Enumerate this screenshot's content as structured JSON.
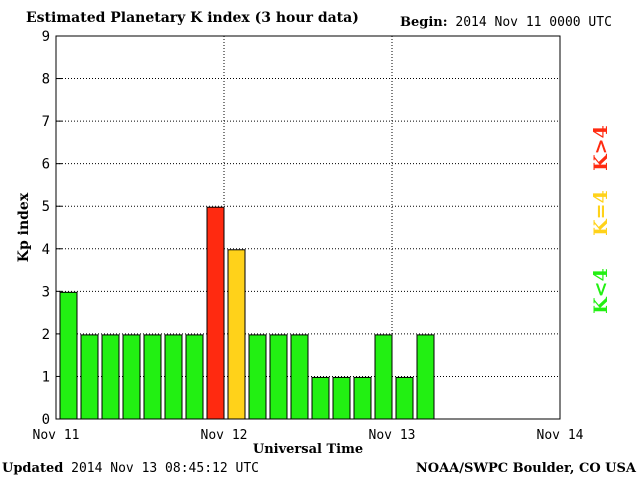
{
  "header": {
    "title": "Estimated Planetary K index (3 hour data)",
    "begin_label": "Begin:",
    "begin_value": "2014 Nov 11 0000 UTC"
  },
  "footer": {
    "updated_label": "Updated",
    "updated_value": "2014 Nov 13 08:45:12 UTC",
    "source": "NOAA/SWPC Boulder, CO USA"
  },
  "legend": {
    "high": {
      "label": "K>4",
      "color": "#ff2a10"
    },
    "equal": {
      "label": "K=4",
      "color": "#ffd21a"
    },
    "low": {
      "label": "K<4",
      "color": "#22f012"
    }
  },
  "chart_data": {
    "type": "bar",
    "title": "Estimated Planetary K index (3 hour data)",
    "xlabel": "Universal Time",
    "ylabel": "Kp index",
    "ylim": [
      0,
      9
    ],
    "yticks": [
      0,
      1,
      2,
      3,
      4,
      5,
      6,
      7,
      8,
      9
    ],
    "xlim_hours": [
      0,
      72
    ],
    "xticks": [
      {
        "label": "Nov 11",
        "hour": 0
      },
      {
        "label": "Nov 12",
        "hour": 24
      },
      {
        "label": "Nov 13",
        "hour": 48
      },
      {
        "label": "Nov 14",
        "hour": 72
      }
    ],
    "bar_interval_hours": 3,
    "values": [
      3,
      2,
      2,
      2,
      2,
      2,
      2,
      5,
      4,
      2,
      2,
      2,
      1,
      1,
      1,
      2,
      1,
      2
    ],
    "grid": true
  }
}
